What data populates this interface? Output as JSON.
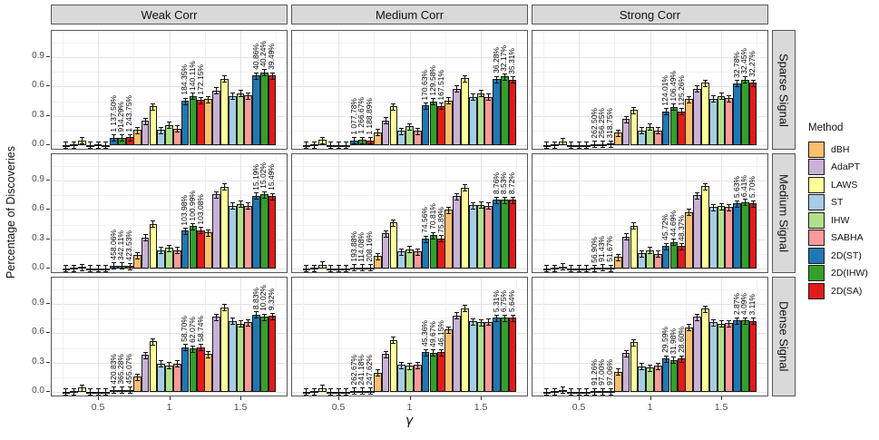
{
  "chart_data": {
    "type": "bar",
    "title": "",
    "xlabel": "γ",
    "ylabel": "Percentage of Discoveries",
    "x_ticks": [
      "0.5",
      "1",
      "1.5"
    ],
    "x_values": [
      0.5,
      1,
      1.5
    ],
    "y_ticks": [
      "0.0",
      "0.3",
      "0.6",
      "0.9"
    ],
    "y_tick_values": [
      0,
      0.3,
      0.6,
      0.9
    ],
    "ylim": [
      -0.053,
      1.167
    ],
    "grid": "major+minor",
    "error_bars": true,
    "legend": {
      "title": "Method",
      "position": "right"
    },
    "facets": {
      "cols": [
        "Weak Corr",
        "Medium Corr",
        "Strong Corr"
      ],
      "rows": [
        "Sparse Signal",
        "Medium Signal",
        "Dense Signal"
      ]
    },
    "methods": [
      {
        "name": "dBH",
        "color": "#FDBF6F"
      },
      {
        "name": "AdaPT",
        "color": "#CAB2D6"
      },
      {
        "name": "LAWS",
        "color": "#FFFF99"
      },
      {
        "name": "ST",
        "color": "#A6CEE3"
      },
      {
        "name": "IHW",
        "color": "#B2DF8A"
      },
      {
        "name": "SABHA",
        "color": "#FB9A99"
      },
      {
        "name": "2D(ST)",
        "color": "#1F78B4"
      },
      {
        "name": "2D(IHW)",
        "color": "#33A02C"
      },
      {
        "name": "2D(SA)",
        "color": "#E31A1C"
      }
    ],
    "annotation_note": "annotations are rotated labels above the 2D(ST), 2D(IHW), 2D(SA) bars",
    "panels": [
      {
        "row": "Sparse Signal",
        "col": "Weak Corr",
        "groups": [
          {
            "x": "0.5",
            "values": [
              0.006,
              0.012,
              0.05,
              0.0065,
              0.008,
              0.006,
              0.08,
              0.081,
              0.082
            ],
            "annotations": [
              "1 137.50%",
              "914.29%",
              "1 243.75%"
            ]
          },
          {
            "x": "1",
            "values": [
              0.16,
              0.25,
              0.4,
              0.16,
              0.21,
              0.17,
              0.455,
              0.503,
              0.463
            ],
            "annotations": [
              "184.35%",
              "140.11%",
              "172.15%"
            ]
          },
          {
            "x": "1.5",
            "values": [
              0.47,
              0.56,
              0.68,
              0.505,
              0.53,
              0.51,
              0.711,
              0.743,
              0.711
            ],
            "annotations": [
              "40.86%",
              "40.24%",
              "39.49%"
            ]
          }
        ]
      },
      {
        "row": "Sparse Signal",
        "col": "Medium Corr",
        "groups": [
          {
            "x": "0.5",
            "values": [
              0.005,
              0.01,
              0.055,
              0.0045,
              0.0042,
              0.004,
              0.053,
              0.057,
              0.052
            ],
            "annotations": [
              "1 077.78%",
              "1 266.67%",
              "1 188.89%"
            ]
          },
          {
            "x": "1",
            "values": [
              0.135,
              0.255,
              0.4,
              0.15,
              0.195,
              0.15,
              0.406,
              0.448,
              0.401
            ],
            "annotations": [
              "170.63%",
              "129.58%",
              "167.51%"
            ]
          },
          {
            "x": "1.5",
            "values": [
              0.46,
              0.58,
              0.685,
              0.495,
              0.53,
              0.497,
              0.674,
              0.701,
              0.67
            ],
            "annotations": [
              "36.28%",
              "32.17%",
              "35.31%"
            ]
          }
        ]
      },
      {
        "row": "Sparse Signal",
        "col": "Strong Corr",
        "groups": [
          {
            "x": "0.5",
            "values": [
              0.004,
              0.008,
              0.04,
              0.004,
              0.0045,
              0.0045,
              0.0145,
              0.016,
              0.0188
            ],
            "annotations": [
              "262.50%",
              "256.25%",
              "318.75%"
            ]
          },
          {
            "x": "1",
            "values": [
              0.13,
              0.27,
              0.36,
              0.155,
              0.19,
              0.155,
              0.347,
              0.392,
              0.349
            ],
            "annotations": [
              "124.01%",
              "106.49%",
              "125.26%"
            ]
          },
          {
            "x": "1.5",
            "values": [
              0.47,
              0.58,
              0.64,
              0.476,
              0.505,
              0.483,
              0.632,
              0.669,
              0.639
            ],
            "annotations": [
              "32.78%",
              "32.45%",
              "32.27%"
            ]
          }
        ]
      },
      {
        "row": "Medium Signal",
        "col": "Weak Corr",
        "groups": [
          {
            "x": "0.5",
            "values": [
              0.005,
              0.012,
              0.02,
              0.006,
              0.0075,
              0.005,
              0.0335,
              0.0332,
              0.0262
            ],
            "annotations": [
              "458.06%",
              "342.11%",
              "423.53%"
            ]
          },
          {
            "x": "1",
            "values": [
              0.14,
              0.32,
              0.46,
              0.19,
              0.215,
              0.19,
              0.388,
              0.434,
              0.392
            ],
            "annotations": [
              "103.98%",
              "100.99%",
              "103.08%"
            ]
          },
          {
            "x": "1.5",
            "values": [
              0.37,
              0.76,
              0.835,
              0.645,
              0.66,
              0.642,
              0.743,
              0.759,
              0.741
            ],
            "annotations": [
              "15.19%",
              "15.02%",
              "15.49%"
            ]
          }
        ]
      },
      {
        "row": "Medium Signal",
        "col": "Medium Corr",
        "groups": [
          {
            "x": "0.5",
            "values": [
              0.004,
              0.01,
              0.04,
              0.005,
              0.007,
              0.005,
              0.0147,
              0.015,
              0.0154
            ],
            "annotations": [
              "193.88%",
              "114.08%",
              "208.16%"
            ]
          },
          {
            "x": "1",
            "values": [
              0.13,
              0.36,
              0.47,
              0.175,
              0.2,
              0.175,
              0.305,
              0.342,
              0.308
            ],
            "annotations": [
              "74.56%",
              "70.81%",
              "75.89%"
            ]
          },
          {
            "x": "1.5",
            "values": [
              0.6,
              0.74,
              0.83,
              0.648,
              0.65,
              0.645,
              0.705,
              0.705,
              0.701
            ],
            "annotations": [
              "8.76%",
              "8.53%",
              "8.72%"
            ]
          }
        ]
      },
      {
        "row": "Medium Signal",
        "col": "Strong Corr",
        "groups": [
          {
            "x": "0.5",
            "values": [
              0.004,
              0.008,
              0.025,
              0.005,
              0.007,
              0.006,
              0.0078,
              0.0134,
              0.0091
            ],
            "annotations": [
              "56.90%",
              "91.43%",
              "51.67%"
            ]
          },
          {
            "x": "1",
            "values": [
              0.12,
              0.33,
              0.44,
              0.16,
              0.19,
              0.155,
              0.233,
              0.275,
              0.23
            ],
            "annotations": [
              "45.72%",
              "44.69%",
              "48.37%"
            ]
          },
          {
            "x": "1.5",
            "values": [
              0.58,
              0.75,
              0.84,
              0.63,
              0.64,
              0.63,
              0.665,
              0.681,
              0.666
            ],
            "annotations": [
              "5.63%",
              "6.41%",
              "5.70%"
            ]
          }
        ]
      },
      {
        "row": "Dense Signal",
        "col": "Weak Corr",
        "groups": [
          {
            "x": "0.5",
            "values": [
              0.005,
              0.012,
              0.045,
              0.0048,
              0.0047,
              0.0046,
              0.025,
              0.0219,
              0.0255
            ],
            "annotations": [
              "420.83%",
              "365.28%",
              "455.07%"
            ]
          },
          {
            "x": "1",
            "values": [
              0.16,
              0.38,
              0.52,
              0.29,
              0.275,
              0.29,
              0.46,
              0.446,
              0.46
            ],
            "annotations": [
              "58.70%",
              "62.07%",
              "58.74%"
            ]
          },
          {
            "x": "1.5",
            "values": [
              0.39,
              0.77,
              0.865,
              0.725,
              0.7,
              0.713,
              0.789,
              0.77,
              0.779
            ],
            "annotations": [
              "8.83%",
              "10.02%",
              "9.32%"
            ]
          }
        ]
      },
      {
        "row": "Dense Signal",
        "col": "Medium Corr",
        "groups": [
          {
            "x": "0.5",
            "values": [
              0.004,
              0.009,
              0.04,
              0.0042,
              0.0038,
              0.0038,
              0.0152,
              0.013,
              0.0132
            ],
            "annotations": [
              "262.67%",
              "241.18%",
              "247.62%"
            ]
          },
          {
            "x": "1",
            "values": [
              0.2,
              0.39,
              0.53,
              0.28,
              0.27,
              0.28,
              0.407,
              0.404,
              0.409
            ],
            "annotations": [
              "45.36%",
              "49.67%",
              "46.15%"
            ]
          },
          {
            "x": "1.5",
            "values": [
              0.64,
              0.78,
              0.855,
              0.72,
              0.712,
              0.718,
              0.758,
              0.76,
              0.758
            ],
            "annotations": [
              "5.31%",
              "6.75%",
              "5.64%"
            ]
          }
        ]
      },
      {
        "row": "Dense Signal",
        "col": "Strong Corr",
        "groups": [
          {
            "x": "0.5",
            "values": [
              0.004,
              0.008,
              0.025,
              0.005,
              0.006,
              0.005,
              0.0096,
              0.0118,
              0.0099
            ],
            "annotations": [
              "91.26%",
              "97.00%",
              "97.06%"
            ]
          },
          {
            "x": "1",
            "values": [
              0.21,
              0.4,
              0.51,
              0.265,
              0.25,
              0.267,
              0.343,
              0.33,
              0.343
            ],
            "annotations": [
              "29.59%",
              "31.98%",
              "28.60%"
            ]
          },
          {
            "x": "1.5",
            "values": [
              0.66,
              0.77,
              0.85,
              0.71,
              0.7,
              0.705,
              0.73,
              0.729,
              0.727
            ],
            "annotations": [
              "2.87%",
              "4.09%",
              "3.11%"
            ]
          }
        ]
      }
    ]
  }
}
